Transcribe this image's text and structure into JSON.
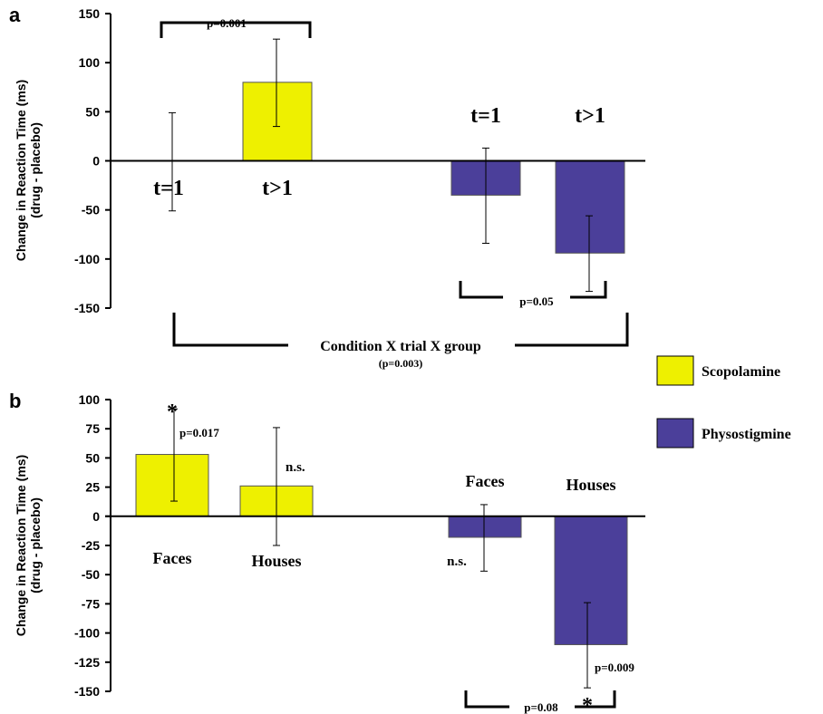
{
  "chart_data": [
    {
      "panel": "a",
      "type": "bar",
      "ylabel": "Change in Reaction Time (ms)",
      "ylabel2": "(drug - placebo)",
      "ylim": [
        -150,
        150
      ],
      "yticks": [
        "150",
        "100",
        "50",
        "0",
        "-50",
        "-100",
        "-150"
      ],
      "bars": [
        {
          "label": "t=1",
          "series": "Scopolamine",
          "value": 0,
          "err_hi": 49,
          "err_lo": -51
        },
        {
          "label": "t>1",
          "series": "Scopolamine",
          "value": 80,
          "err_hi": 124,
          "err_lo": 35
        },
        {
          "label": "t=1",
          "series": "Physostigmine",
          "value": -35,
          "err_hi": 13,
          "err_lo": -84
        },
        {
          "label": "t>1",
          "series": "Physostigmine",
          "value": -94,
          "err_hi": -56,
          "err_lo": -133
        }
      ],
      "annotations": {
        "top_bracket": "p=0.001",
        "bottom_bracket": "p=0.05",
        "interaction": "Condition X trial X group",
        "interaction_p": "(p=0.003)"
      }
    },
    {
      "panel": "b",
      "type": "bar",
      "ylabel": "Change in Reaction Time (ms)",
      "ylabel2": "(drug - placebo)",
      "ylim": [
        -150,
        100
      ],
      "yticks": [
        "100",
        "75",
        "50",
        "25",
        "0",
        "-25",
        "-50",
        "-75",
        "-100",
        "-125",
        "-150"
      ],
      "bars": [
        {
          "label": "Faces",
          "series": "Scopolamine",
          "value": 53,
          "err_hi": 92,
          "err_lo": 13
        },
        {
          "label": "Houses",
          "series": "Scopolamine",
          "value": 26,
          "err_hi": 76,
          "err_lo": -25
        },
        {
          "label": "Faces",
          "series": "Physostigmine",
          "value": -18,
          "err_hi": 10,
          "err_lo": -47
        },
        {
          "label": "Houses",
          "series": "Physostigmine",
          "value": -110,
          "err_hi": -74,
          "err_lo": -147
        }
      ],
      "annotations": {
        "star_1": "*",
        "p_1": "p=0.017",
        "ns_1": "n.s.",
        "ns_2": "n.s.",
        "p_2": "p=0.009",
        "star_2": "*",
        "bottom_bracket": "p=0.08"
      }
    }
  ],
  "legend": [
    {
      "name": "Scopolamine",
      "color": "#eef000"
    },
    {
      "name": "Physostigmine",
      "color": "#4b3f9a"
    }
  ],
  "colors": {
    "Scopolamine": "#eef000",
    "Physostigmine": "#4b3f9a"
  }
}
